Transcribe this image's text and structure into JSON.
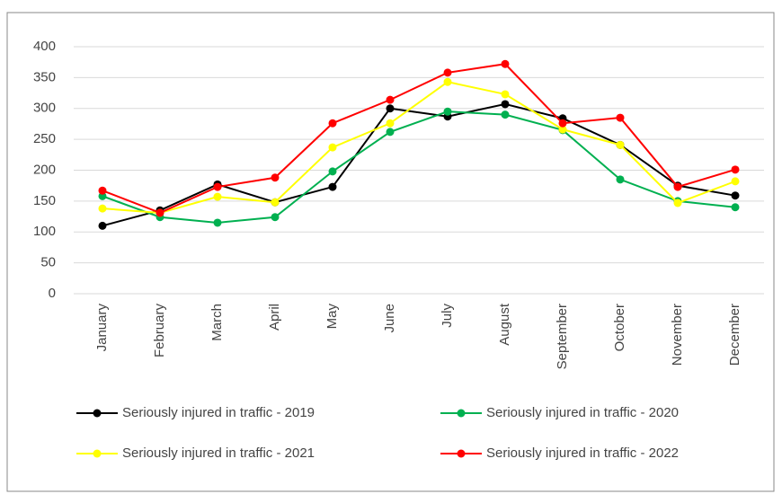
{
  "chart_data": {
    "type": "line",
    "categories": [
      "January",
      "February",
      "March",
      "April",
      "May",
      "June",
      "July",
      "August",
      "September",
      "October",
      "November",
      "December"
    ],
    "series": [
      {
        "name": "Seriously injured in traffic - 2019",
        "color": "#000000",
        "values": [
          110,
          135,
          177,
          148,
          173,
          300,
          287,
          307,
          284,
          241,
          175,
          159
        ]
      },
      {
        "name": "Seriously injured in traffic - 2020",
        "color": "#00b050",
        "values": [
          158,
          124,
          115,
          124,
          198,
          262,
          295,
          290,
          265,
          185,
          150,
          140
        ]
      },
      {
        "name": "Seriously injured in traffic - 2021",
        "color": "#ffff00",
        "values": [
          138,
          131,
          157,
          148,
          237,
          276,
          343,
          323,
          266,
          241,
          147,
          182
        ]
      },
      {
        "name": "Seriously injured in traffic - 2022",
        "color": "#ff0000",
        "values": [
          167,
          131,
          173,
          188,
          276,
          314,
          358,
          372,
          276,
          285,
          173,
          201
        ]
      }
    ],
    "ylim": [
      0,
      400
    ],
    "yticks": [
      0,
      50,
      100,
      150,
      200,
      250,
      300,
      350,
      400
    ],
    "grid": true
  }
}
